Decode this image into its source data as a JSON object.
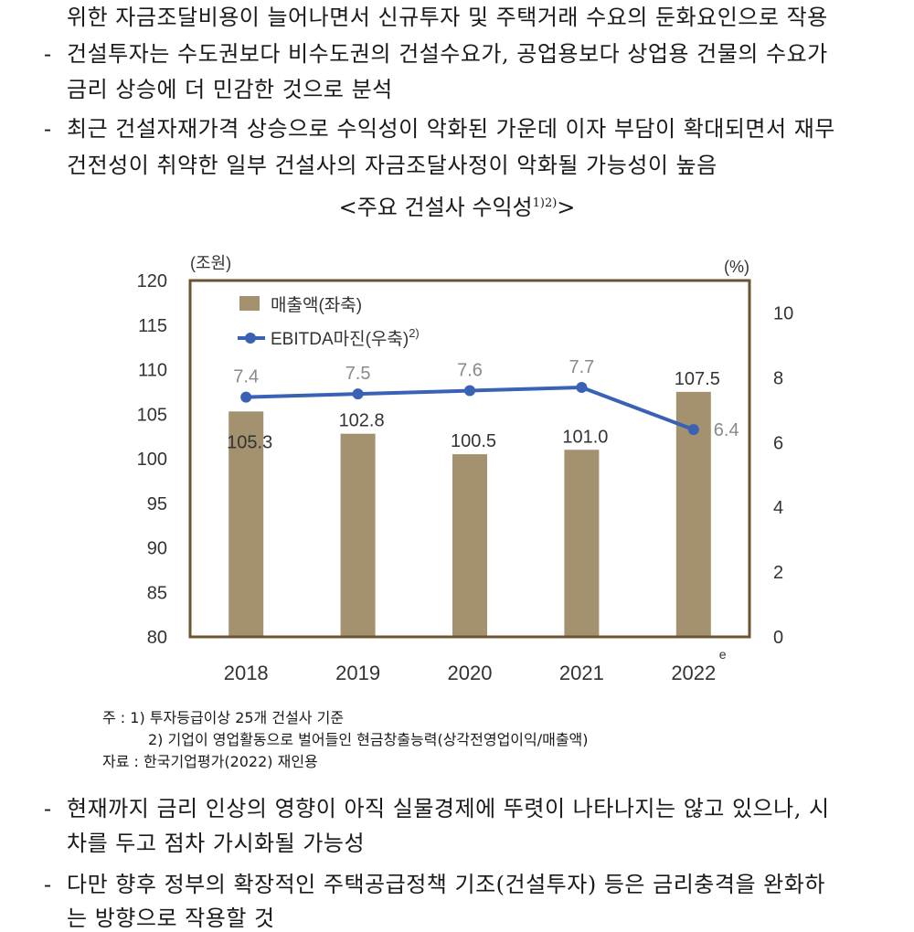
{
  "paragraphs": {
    "p0_line2": "위한 자금조달비용이 늘어나면서 신규투자 및 주택거래 수요의 둔화요인으로 작용",
    "p1_line1": "건설투자는 수도권보다 비수도권의 건설수요가, 공업용보다 상업용 건물의 수요가",
    "p1_line2": "금리 상승에 더 민감한 것으로 분석",
    "p2_line1": "최근 건설자재가격 상승으로 수익성이 악화된 가운데 이자 부담이 확대되면서 재무",
    "p2_line2": "건전성이 취약한 일부 건설사의 자금조달사정이 악화될 가능성이 높음",
    "p3_line1": "현재까지 금리 인상의 영향이 아직 실물경제에 뚜렷이 나타나지는 않고 있으나, 시",
    "p3_line2": "차를 두고 점차 가시화될 가능성",
    "p4_line1": "다만 향후 정부의 확장적인 주택공급정책 기조(건설투자) 등은 금리충격을 완화하",
    "p4_line2": "는 방향으로 작용할 것",
    "dash": "-"
  },
  "figure": {
    "caption": "<주요 건설사 수익성",
    "caption_sup": "1)2)",
    "caption_end": ">",
    "notes": [
      "주 : 1) 투자등급이상 25개 건설사 기준",
      "2) 기업이 영업활동으로 벌어들인 현금창출능력(상각전영업이익/매출액)",
      "자료 : 한국기업평가(2022) 재인용"
    ]
  },
  "chart_data": {
    "type": "bar",
    "categories": [
      "2018",
      "2019",
      "2020",
      "2021",
      "2022"
    ],
    "estimate_mark": "e",
    "left_unit": "(조원)",
    "right_unit": "(%)",
    "left_axis": {
      "ticks": [
        "80",
        "85",
        "90",
        "95",
        "100",
        "105",
        "110",
        "115",
        "120"
      ],
      "ylim": [
        80,
        120
      ]
    },
    "right_axis": {
      "ticks": [
        "0",
        "2",
        "4",
        "6",
        "8",
        "10"
      ],
      "ylim": [
        0,
        11
      ]
    },
    "series": [
      {
        "name": "매출액(좌축)",
        "type": "bar",
        "axis": "left",
        "values": [
          105.3,
          102.8,
          100.5,
          101.0,
          107.5
        ],
        "labels": [
          "105.3",
          "102.8",
          "100.5",
          "101.0",
          "107.5"
        ],
        "color": "#a3916f"
      },
      {
        "name": "EBITDA마진(우축)",
        "name_sup": "2)",
        "type": "line",
        "axis": "right",
        "values": [
          7.4,
          7.5,
          7.6,
          7.7,
          6.4
        ],
        "labels": [
          "7.4",
          "7.5",
          "7.6",
          "7.7",
          "6.4"
        ],
        "color": "#3a62b4"
      }
    ],
    "colors": {
      "frame": "#6b5530",
      "text": "#333333",
      "muted_label": "#8a8a8a"
    }
  }
}
